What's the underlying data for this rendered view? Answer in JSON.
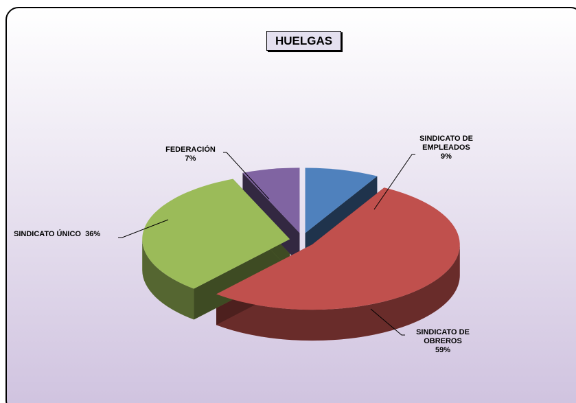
{
  "chart_data": {
    "type": "pie",
    "title": "HUELGAS",
    "categories": [
      "SINDICATO DE EMPLEADOS",
      "SINDICATO DE OBREROS",
      "SINDICATO ÚNICO",
      "FEDERACIÓN"
    ],
    "values": [
      9,
      59,
      36,
      7
    ],
    "value_labels": [
      "9%",
      "59%",
      "36%",
      "7%"
    ],
    "colors": [
      "#4f81bd",
      "#c0504d",
      "#9bbb59",
      "#8064a2"
    ]
  }
}
